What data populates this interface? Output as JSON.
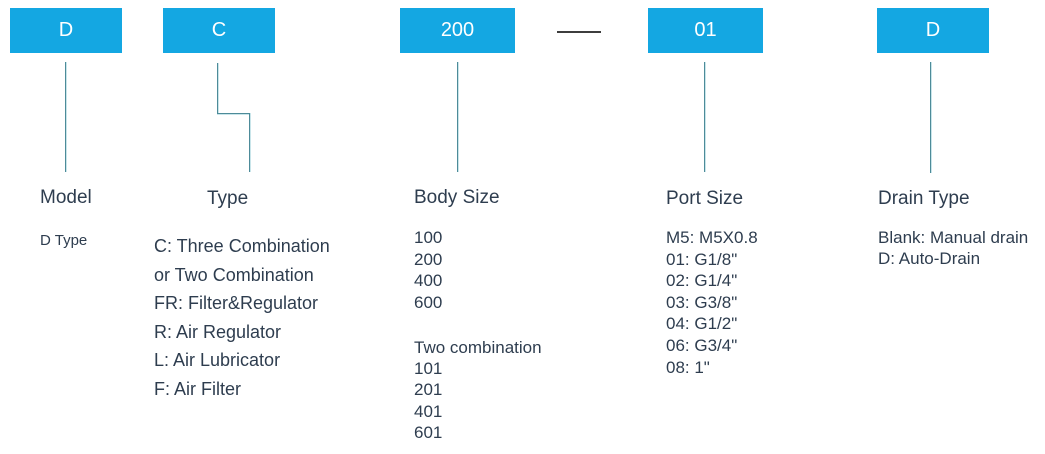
{
  "colors": {
    "accent": "#14a7e2",
    "text": "#2e3d4f",
    "box-text": "#ffffff",
    "line": "#4d8b99",
    "line-light": "#c9e5ea",
    "dash": "#3d3d3d",
    "bg": "#ffffff"
  },
  "code_row": {
    "boxes": [
      "D",
      "C",
      "200",
      "01",
      "D"
    ],
    "separator": "—"
  },
  "columns": [
    {
      "label": "Model",
      "lines": [
        "D Type"
      ]
    },
    {
      "label": "Type",
      "lines": [
        "C: Three Combination",
        "or Two Combination",
        "FR: Filter&Regulator",
        "R: Air Regulator",
        "L: Air Lubricator",
        "F: Air Filter"
      ]
    },
    {
      "label": "Body Size",
      "lines": [
        "100",
        "200",
        "400",
        "600"
      ],
      "sub_lines": [
        "Two combination",
        "101",
        "201",
        "401",
        "601"
      ]
    },
    {
      "label": "Port Size",
      "lines": [
        "M5: M5X0.8",
        "01: G1/8\"",
        "02: G1/4\"",
        "03: G3/8\"",
        "04: G1/2\"",
        "06: G3/4\"",
        "08: 1\""
      ]
    },
    {
      "label": "Drain Type",
      "lines": [
        "Blank: Manual drain",
        "D: Auto-Drain"
      ]
    }
  ]
}
